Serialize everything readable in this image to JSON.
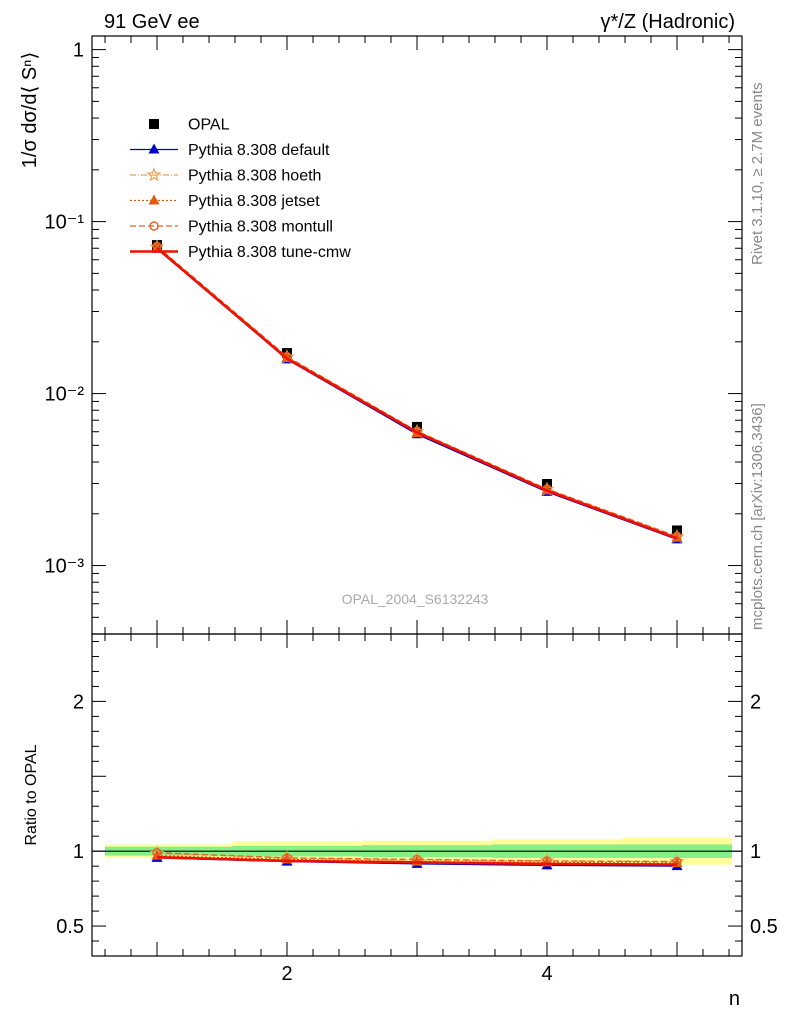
{
  "header": {
    "left_label": "91 GeV ee",
    "right_label": "γ*/Z (Hadronic)"
  },
  "side_text": {
    "rivet": "Rivet 3.1.10, ≥ 2.7M events",
    "mcplots": "mcplots.cern.ch [arXiv:1306.3436]"
  },
  "watermark": "OPAL_2004_S6132243",
  "colors": {
    "data": "#000000",
    "default": "#0000cc",
    "hoeth": "#f0a050",
    "jetset": "#e05a10",
    "montull": "#e86020",
    "tune_cmw": "#ee1100",
    "band_inner": "#88ee88",
    "band_outer": "#ffff99"
  },
  "chart_data": [
    {
      "type": "line",
      "ylabel": "1/σ dσ/d⟨ Sⁿ⟩",
      "yscale": "log",
      "ylim": [
        0.0004,
        1.2
      ],
      "xlim": [
        0.5,
        5.5
      ],
      "yticks": [
        {
          "v": 1,
          "label": "1"
        },
        {
          "v": 0.1,
          "label": "10⁻¹"
        },
        {
          "v": 0.01,
          "label": "10⁻²"
        },
        {
          "v": 0.001,
          "label": "10⁻³"
        }
      ],
      "x": [
        1,
        2,
        3,
        4,
        5
      ],
      "series": [
        {
          "name": "OPAL",
          "key": "data",
          "marker": "square",
          "line": "none",
          "values": [
            0.073,
            0.0172,
            0.0064,
            0.00298,
            0.0016
          ]
        },
        {
          "name": "Pythia 8.308 default",
          "key": "default",
          "marker": "triangle-filled",
          "line": "solid",
          "values": [
            0.0695,
            0.0158,
            0.0058,
            0.00268,
            0.00142
          ]
        },
        {
          "name": "Pythia 8.308 hoeth",
          "key": "hoeth",
          "marker": "star",
          "line": "dashdot",
          "values": [
            0.0712,
            0.0163,
            0.006,
            0.00277,
            0.00147
          ]
        },
        {
          "name": "Pythia 8.308 jetset",
          "key": "jetset",
          "marker": "triangle-filled",
          "line": "dotted",
          "values": [
            0.0705,
            0.0161,
            0.0059,
            0.00274,
            0.00145
          ]
        },
        {
          "name": "Pythia 8.308 montull",
          "key": "montull",
          "marker": "circle-open",
          "line": "dashed",
          "values": [
            0.0718,
            0.0164,
            0.00605,
            0.00279,
            0.00148
          ]
        },
        {
          "name": "Pythia 8.308 tune-cmw",
          "key": "tune_cmw",
          "marker": "none",
          "line": "thick",
          "values": [
            0.0702,
            0.016,
            0.00595,
            0.00273,
            0.00144
          ]
        }
      ]
    },
    {
      "type": "line",
      "ylabel": "Ratio to OPAL",
      "xlabel": "n",
      "ylim": [
        0.3,
        2.45
      ],
      "xlim": [
        0.5,
        5.5
      ],
      "yticks": [
        {
          "v": 0.5,
          "label": "0.5"
        },
        {
          "v": 1,
          "label": "1"
        },
        {
          "v": 2,
          "label": "2"
        }
      ],
      "xticks": [
        {
          "v": 2,
          "label": "2"
        },
        {
          "v": 4,
          "label": "4"
        }
      ],
      "x": [
        1,
        2,
        3,
        4,
        5
      ],
      "uncertainty_band": {
        "stat": [
          0.03,
          0.035,
          0.04,
          0.045,
          0.045
        ],
        "total": [
          0.045,
          0.065,
          0.07,
          0.08,
          0.09
        ]
      },
      "series": [
        {
          "name": "Pythia 8.308 default",
          "key": "default",
          "marker": "triangle-filled",
          "line": "solid",
          "values": [
            0.955,
            0.93,
            0.915,
            0.905,
            0.9
          ]
        },
        {
          "name": "Pythia 8.308 hoeth",
          "key": "hoeth",
          "marker": "star",
          "line": "dashdot",
          "values": [
            0.985,
            0.955,
            0.94,
            0.935,
            0.93
          ]
        },
        {
          "name": "Pythia 8.308 jetset",
          "key": "jetset",
          "marker": "triangle-filled",
          "line": "dotted",
          "values": [
            0.97,
            0.945,
            0.93,
            0.925,
            0.92
          ]
        },
        {
          "name": "Pythia 8.308 montull",
          "key": "montull",
          "marker": "circle-open",
          "line": "dashed",
          "values": [
            0.99,
            0.955,
            0.945,
            0.935,
            0.93
          ]
        },
        {
          "name": "Pythia 8.308 tune-cmw",
          "key": "tune_cmw",
          "marker": "none",
          "line": "thick",
          "values": [
            0.96,
            0.935,
            0.925,
            0.915,
            0.91
          ]
        }
      ]
    }
  ]
}
